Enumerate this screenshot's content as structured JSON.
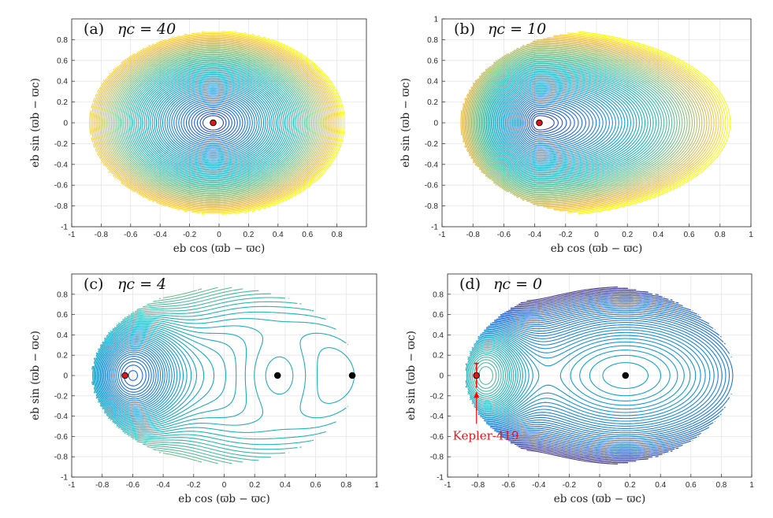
{
  "chart_data": [
    {
      "type": "contour",
      "panel_label": "(a)",
      "title": "ηc = 40",
      "xlabel": "eb cos (ϖb − ϖc)",
      "ylabel": "eb sin (ϖb − ϖc)",
      "xlim": [
        -1,
        1
      ],
      "ylim": [
        -1,
        1
      ],
      "xticks": [
        "-1",
        "-0.8",
        "-0.6",
        "-0.4",
        "-0.2",
        "0",
        "0.2",
        "0.4",
        "0.6",
        "0.8"
      ],
      "yticks": [
        "-1",
        "-0.8",
        "-0.6",
        "-0.4",
        "-0.2",
        "0",
        "0.2",
        "0.4",
        "0.6",
        "0.8"
      ],
      "grid": true,
      "boundary_extent": {
        "xmin": -0.88,
        "xmax": 0.87,
        "ymax": 0.88
      },
      "fixed_points": [
        {
          "x": -0.04,
          "y": 0.0,
          "color": "red"
        }
      ],
      "contour_structure": "concentric",
      "colormap": "parula"
    },
    {
      "type": "contour",
      "panel_label": "(b)",
      "title": "ηc = 10",
      "xlabel": "eb cos (ϖb − ϖc)",
      "ylabel": "eb sin (ϖb − ϖc)",
      "xlim": [
        -1,
        1
      ],
      "ylim": [
        -1,
        1
      ],
      "xticks": [
        "-1",
        "-0.8",
        "-0.6",
        "-0.4",
        "-0.2",
        "0",
        "0.2",
        "0.4",
        "0.6",
        "0.8",
        "1"
      ],
      "yticks": [
        "-1",
        "-0.8",
        "-0.6",
        "-0.4",
        "-0.2",
        "0",
        "0.2",
        "0.4",
        "0.6",
        "0.8",
        "1"
      ],
      "grid": true,
      "boundary_extent": {
        "xmin": -0.9,
        "xmax": 0.87,
        "ymax": 0.88
      },
      "fixed_points": [
        {
          "x": -0.37,
          "y": 0.0,
          "color": "red"
        }
      ],
      "contour_structure": "concentric",
      "colormap": "parula"
    },
    {
      "type": "contour",
      "panel_label": "(c)",
      "title": "ηc = 4",
      "xlabel": "eb cos (ϖb − ϖc)",
      "ylabel": "eb sin (ϖb − ϖc)",
      "xlim": [
        -1,
        1
      ],
      "ylim": [
        -1,
        1
      ],
      "xticks": [
        "-1",
        "-0.8",
        "-0.6",
        "-0.4",
        "-0.2",
        "0",
        "0.2",
        "0.4",
        "0.6",
        "0.8",
        "1"
      ],
      "yticks": [
        "-1",
        "-0.8",
        "-0.6",
        "-0.4",
        "-0.2",
        "0",
        "0.2",
        "0.4",
        "0.6",
        "0.8"
      ],
      "grid": true,
      "boundary_extent": {
        "xmin": -0.87,
        "xmax": 0.87,
        "ymax": 0.85
      },
      "fixed_points": [
        {
          "x": -0.65,
          "y": 0.0,
          "color": "red"
        },
        {
          "x": 0.35,
          "y": 0.0,
          "color": "black"
        },
        {
          "x": 0.84,
          "y": 0.0,
          "color": "black"
        }
      ],
      "contour_structure": "two-centers",
      "colormap": "parula"
    },
    {
      "type": "contour",
      "panel_label": "(d)",
      "title": "ηc = 0",
      "xlabel": "eb cos (ϖb − ϖc)",
      "ylabel": "eb sin (ϖb − ϖc)",
      "xlim": [
        -1,
        1
      ],
      "ylim": [
        -1,
        1
      ],
      "xticks": [
        "-1",
        "-0.8",
        "-0.6",
        "-0.4",
        "-0.2",
        "0",
        "0.2",
        "0.4",
        "0.6",
        "0.8",
        "1"
      ],
      "yticks": [
        "-1",
        "-0.8",
        "-0.6",
        "-0.4",
        "-0.2",
        "0",
        "0.2",
        "0.4",
        "0.6",
        "0.8"
      ],
      "grid": true,
      "boundary_extent": {
        "xmin": -0.88,
        "xmax": 0.87,
        "ymax": 0.88
      },
      "fixed_points": [
        {
          "x": -0.81,
          "y": 0.0,
          "color": "red"
        },
        {
          "x": 0.17,
          "y": 0.0,
          "color": "black"
        }
      ],
      "contour_structure": "separatrix",
      "colormap": "parula",
      "annotation": {
        "text": "Kepler-419",
        "x": -0.81,
        "y": -0.15,
        "color": "red",
        "error_bar_y": [
          -0.12,
          0.12
        ]
      }
    }
  ],
  "colors": {
    "contour_low": "#352a87",
    "contour_mid": "#1fa3c6",
    "contour_high": "#f9fb0e",
    "point_red": "#d7191c",
    "annotation_red": "#e8141b"
  }
}
